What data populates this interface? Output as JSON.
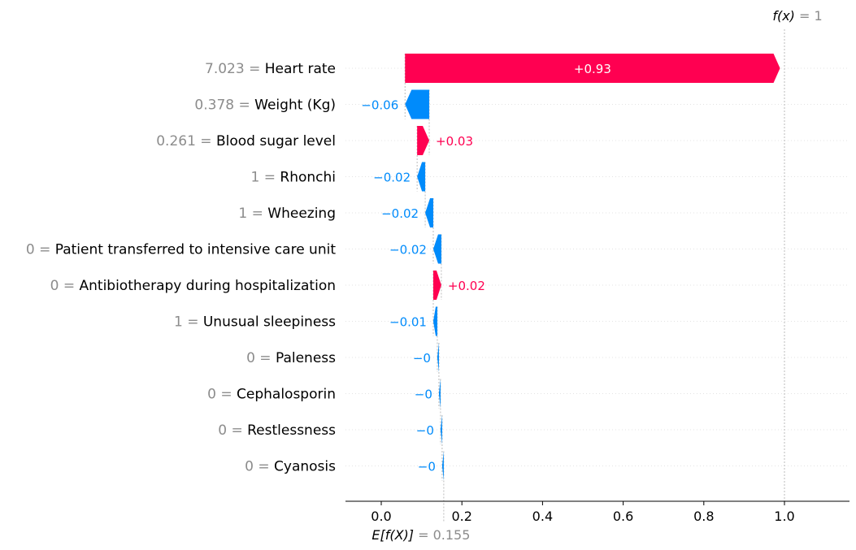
{
  "chart_data": {
    "type": "waterfall",
    "title": "",
    "xlabel": "",
    "ylabel": "",
    "xlim": [
      -0.09,
      1.15
    ],
    "xticks": [
      "0.0",
      "0.2",
      "0.4",
      "0.6",
      "0.8",
      "1.0"
    ],
    "xtick_values": [
      0.0,
      0.2,
      0.4,
      0.6,
      0.8,
      1.0
    ],
    "base_value": 0.155,
    "output_value": 1,
    "base_label": {
      "prefix": "E[f(X)]",
      "eq": " = 0.155"
    },
    "output_label": {
      "prefix": "f(x)",
      "eq": " = 1"
    },
    "positive_color": "#ff0051",
    "negative_color": "#008bfb",
    "features": [
      {
        "value": "7.023",
        "name": "Heart rate",
        "shap": 0.93,
        "label": "+0.93"
      },
      {
        "value": "0.378",
        "name": "Weight (Kg)",
        "shap": -0.06,
        "label": "−0.06"
      },
      {
        "value": "0.261",
        "name": "Blood sugar level",
        "shap": 0.03,
        "label": "+0.03"
      },
      {
        "value": "1",
        "name": "Rhonchi",
        "shap": -0.02,
        "label": "−0.02"
      },
      {
        "value": "1",
        "name": "Wheezing",
        "shap": -0.02,
        "label": "−0.02"
      },
      {
        "value": "0",
        "name": "Patient transferred to intensive care unit",
        "shap": -0.02,
        "label": "−0.02"
      },
      {
        "value": "0",
        "name": "Antibiotherapy during hospitalization",
        "shap": 0.02,
        "label": "+0.02"
      },
      {
        "value": "1",
        "name": "Unusual sleepiness",
        "shap": -0.01,
        "label": "−0.01"
      },
      {
        "value": "0",
        "name": "Paleness",
        "shap": -0.004,
        "label": "−0"
      },
      {
        "value": "0",
        "name": "Cephalosporin",
        "shap": -0.004,
        "label": "−0"
      },
      {
        "value": "0",
        "name": "Restlessness",
        "shap": -0.004,
        "label": "−0"
      },
      {
        "value": "0",
        "name": "Cyanosis",
        "shap": -0.004,
        "label": "−0"
      }
    ]
  }
}
